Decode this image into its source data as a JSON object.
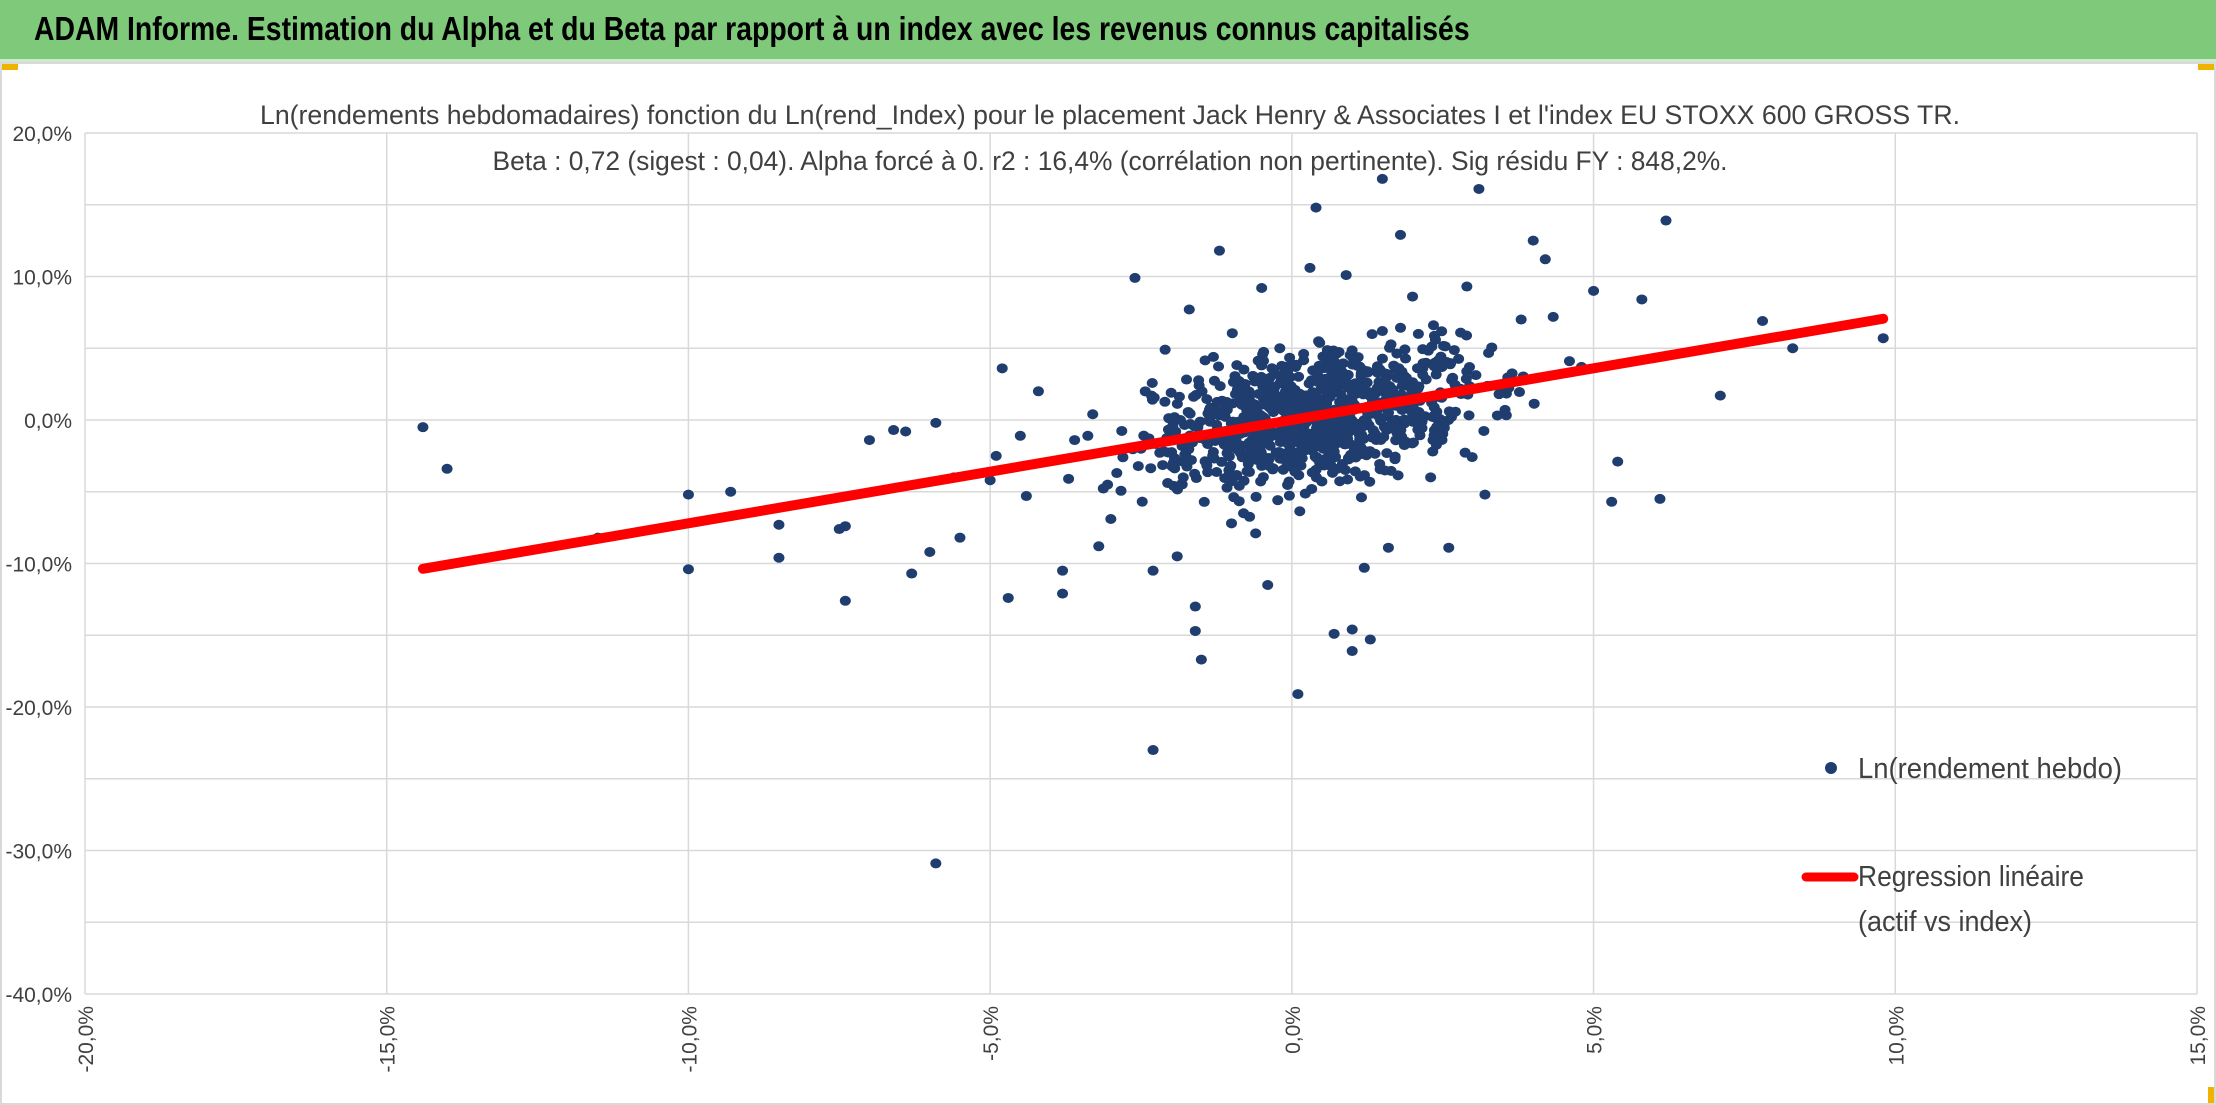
{
  "header": {
    "title": "ADAM Informe. Estimation du Alpha et du Beta par rapport à un index avec les revenus connus capitalisés"
  },
  "colors": {
    "banner": "#7fc97a",
    "points": "#1f3d6e",
    "regression": "#ff0000",
    "grid": "#d9d9d9",
    "corner_accent": "#f0b400"
  },
  "chart_data": {
    "type": "scatter",
    "title": "Ln(rendements hebdomadaires) fonction du Ln(rend_Index) pour le placement Jack Henry & Associates I et l'index EU STOXX 600 GROSS TR.",
    "subtitle": "Beta : 0,72 (sigest : 0,04). Alpha forcé à 0. r2 : 16,4% (corrélation non pertinente). Sig résidu FY : 848,2%.",
    "xlabel": "",
    "ylabel": "",
    "xlim": [
      -20,
      15
    ],
    "ylim": [
      -40,
      20
    ],
    "x_ticks": [
      "-20,0%",
      "-15,0%",
      "-10,0%",
      "-5,0%",
      "0,0%",
      "5,0%",
      "10,0%",
      "15,0%"
    ],
    "y_ticks": [
      "20,0%",
      "10,0%",
      "0,0%",
      "-10,0%",
      "-20,0%",
      "-30,0%",
      "-40,0%"
    ],
    "grid": true,
    "legend_position": "right",
    "series": [
      {
        "name": "Ln(rendement hebdo)",
        "kind": "scatter",
        "points": [
          [
            -14.4,
            -0.5
          ],
          [
            -14.0,
            -3.4
          ],
          [
            -11.5,
            -8.2
          ],
          [
            -10.0,
            -5.2
          ],
          [
            -10.0,
            -10.4
          ],
          [
            -9.3,
            -5.0
          ],
          [
            -8.5,
            -7.3
          ],
          [
            -8.5,
            -9.6
          ],
          [
            -7.5,
            -7.6
          ],
          [
            -7.4,
            -12.6
          ],
          [
            -7.4,
            -7.4
          ],
          [
            -7.0,
            -1.4
          ],
          [
            -6.6,
            -0.7
          ],
          [
            -6.4,
            -0.8
          ],
          [
            -6.3,
            -10.7
          ],
          [
            -6.0,
            -9.2
          ],
          [
            -5.9,
            -30.9
          ],
          [
            -5.9,
            -0.2
          ],
          [
            -5.6,
            -4.0
          ],
          [
            -5.5,
            -8.2
          ],
          [
            -5.0,
            -4.2
          ],
          [
            -4.9,
            -2.5
          ],
          [
            -4.8,
            3.6
          ],
          [
            -4.7,
            -12.4
          ],
          [
            -4.5,
            -1.1
          ],
          [
            -4.2,
            2.0
          ],
          [
            -3.8,
            -12.1
          ],
          [
            -3.8,
            -10.5
          ],
          [
            -3.7,
            -4.1
          ],
          [
            -3.6,
            -1.4
          ],
          [
            -3.2,
            -8.8
          ],
          [
            -3.0,
            -6.9
          ],
          [
            -2.6,
            9.9
          ],
          [
            -2.5,
            -2.0
          ],
          [
            -2.3,
            -10.5
          ],
          [
            -2.3,
            -23.0
          ],
          [
            -2.1,
            4.9
          ],
          [
            -1.9,
            -9.5
          ],
          [
            -1.7,
            7.7
          ],
          [
            -1.6,
            -13.0
          ],
          [
            -1.5,
            -16.7
          ],
          [
            -1.6,
            -14.7
          ],
          [
            -1.2,
            11.8
          ],
          [
            -1.0,
            -7.2
          ],
          [
            -0.6,
            -7.9
          ],
          [
            -0.5,
            9.2
          ],
          [
            -0.5,
            -3.2
          ],
          [
            -0.4,
            -11.5
          ],
          [
            0.1,
            -19.1
          ],
          [
            0.4,
            14.8
          ],
          [
            0.7,
            -14.9
          ],
          [
            1.0,
            -14.6
          ],
          [
            1.0,
            -16.1
          ],
          [
            1.3,
            -15.3
          ],
          [
            1.6,
            -8.9
          ],
          [
            1.8,
            12.9
          ],
          [
            2.0,
            8.6
          ],
          [
            2.6,
            -8.9
          ],
          [
            3.1,
            16.1
          ],
          [
            4.0,
            12.5
          ],
          [
            4.2,
            11.2
          ],
          [
            4.6,
            4.1
          ],
          [
            5.3,
            -5.7
          ],
          [
            5.4,
            -2.9
          ],
          [
            5.8,
            8.4
          ],
          [
            6.1,
            -5.5
          ],
          [
            6.2,
            13.9
          ],
          [
            7.1,
            1.7
          ],
          [
            7.8,
            6.9
          ],
          [
            8.3,
            5.0
          ],
          [
            9.8,
            5.7
          ],
          [
            4.8,
            3.7
          ],
          [
            3.8,
            7.0
          ],
          [
            2.9,
            9.3
          ],
          [
            1.5,
            16.8
          ],
          [
            -0.2,
            5.0
          ],
          [
            -1.3,
            4.4
          ],
          [
            -2.8,
            -2.6
          ],
          [
            -3.3,
            0.4
          ],
          [
            -2.0,
            1.9
          ],
          [
            0.3,
            10.6
          ],
          [
            0.9,
            10.1
          ],
          [
            1.5,
            6.2
          ],
          [
            -0.8,
            -6.5
          ],
          [
            2.3,
            -4.0
          ],
          [
            3.2,
            -5.2
          ],
          [
            1.2,
            -10.3
          ],
          [
            -1.8,
            -4.0
          ],
          [
            -4.4,
            -5.3
          ],
          [
            5.0,
            9.0
          ]
        ]
      },
      {
        "name": "Regression linéaire (actif vs index)",
        "kind": "line",
        "slope": 0.72,
        "intercept": 0,
        "x_range": [
          -14.4,
          9.8
        ]
      }
    ]
  }
}
